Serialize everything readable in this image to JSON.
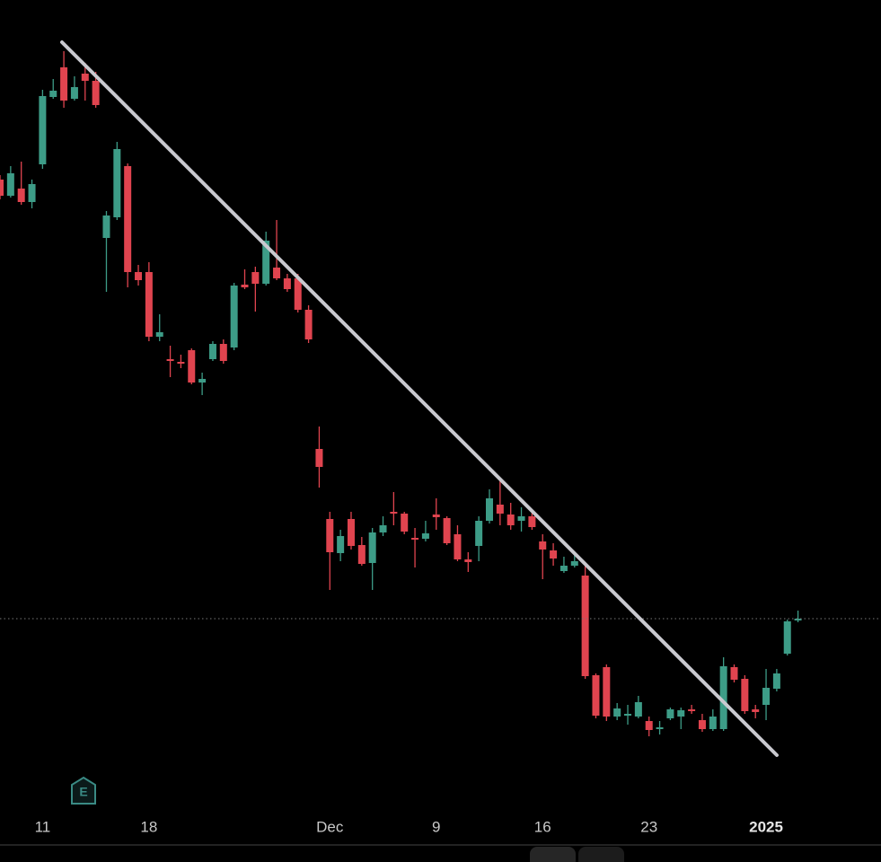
{
  "chart_data": {
    "type": "candlestick",
    "x": [
      0,
      1,
      2,
      3,
      4,
      5,
      6,
      7,
      8,
      9,
      10,
      11,
      12,
      13,
      14,
      15,
      16,
      17,
      18,
      19,
      20,
      21,
      22,
      23,
      24,
      25,
      26,
      27,
      28,
      29,
      30,
      31,
      32,
      33,
      34,
      35,
      36,
      37,
      38,
      39,
      40,
      41,
      42,
      43,
      44,
      45,
      46,
      47,
      48,
      49,
      50,
      51,
      52,
      53,
      54,
      55,
      56,
      57,
      58,
      59,
      60,
      61,
      62,
      63,
      64,
      65,
      66,
      67,
      68,
      69,
      70,
      71,
      72,
      73,
      74,
      75
    ],
    "open": [
      700,
      682,
      690,
      675,
      717,
      792,
      825,
      790,
      818,
      810,
      635,
      658,
      715,
      597,
      597,
      525,
      500,
      497,
      510,
      474,
      500,
      517,
      513,
      583,
      597,
      584,
      602,
      590,
      590,
      555,
      400,
      322,
      284,
      322,
      293,
      273,
      307,
      330,
      328,
      301,
      300,
      327,
      323,
      305,
      277,
      292,
      320,
      338,
      327,
      320,
      325,
      297,
      287,
      264,
      270,
      259,
      148,
      157,
      102,
      103,
      102,
      97,
      88,
      100,
      102,
      110,
      98,
      88,
      88,
      157,
      144,
      110,
      115,
      133,
      172,
      209
    ],
    "high": [
      705,
      715,
      720,
      700,
      800,
      812,
      843,
      815,
      830,
      820,
      665,
      742,
      718,
      605,
      608,
      550,
      515,
      505,
      512,
      485,
      520,
      522,
      585,
      600,
      603,
      642,
      655,
      595,
      595,
      560,
      425,
      330,
      310,
      330,
      302,
      312,
      325,
      352,
      330,
      312,
      320,
      345,
      325,
      315,
      285,
      325,
      355,
      365,
      340,
      335,
      330,
      305,
      295,
      280,
      285,
      270,
      150,
      160,
      117,
      115,
      125,
      102,
      97,
      112,
      112,
      115,
      105,
      110,
      168,
      160,
      148,
      115,
      155,
      155,
      210,
      220
    ],
    "low": [
      678,
      680,
      672,
      668,
      712,
      790,
      780,
      788,
      788,
      780,
      575,
      655,
      580,
      582,
      520,
      520,
      480,
      490,
      472,
      460,
      498,
      495,
      510,
      578,
      553,
      582,
      588,
      575,
      552,
      518,
      357,
      243,
      275,
      288,
      270,
      243,
      303,
      315,
      305,
      268,
      297,
      310,
      293,
      275,
      263,
      275,
      317,
      315,
      310,
      308,
      310,
      255,
      270,
      262,
      268,
      144,
      100,
      97,
      98,
      93,
      100,
      80,
      82,
      98,
      88,
      105,
      85,
      86,
      86,
      140,
      105,
      100,
      98,
      130,
      170,
      207
    ],
    "close": [
      682,
      707,
      675,
      695,
      793,
      799,
      788,
      803,
      810,
      783,
      660,
      734,
      597,
      588,
      525,
      530,
      498,
      495,
      474,
      478,
      517,
      498,
      582,
      580,
      584,
      632,
      590,
      578,
      555,
      522,
      380,
      285,
      303,
      292,
      272,
      307,
      315,
      328,
      308,
      299,
      306,
      324,
      295,
      277,
      274,
      320,
      345,
      328,
      315,
      325,
      313,
      288,
      278,
      270,
      275,
      147,
      103,
      102,
      111,
      105,
      118,
      87,
      90,
      110,
      109,
      108,
      88,
      102,
      158,
      143,
      108,
      107,
      134,
      150,
      208,
      211
    ],
    "up_color": "#3d9c87",
    "down_color": "#e0444f",
    "xlim": [
      0,
      82.8
    ],
    "ylim": [
      0,
      900
    ],
    "xticks": [
      {
        "value": 4,
        "label": "11"
      },
      {
        "value": 14,
        "label": "18"
      },
      {
        "value": 31,
        "label": "Dec"
      },
      {
        "value": 41,
        "label": "9"
      },
      {
        "value": 51,
        "label": "16"
      },
      {
        "value": 61,
        "label": "23"
      },
      {
        "value": 72,
        "label": "2025",
        "bold": true
      }
    ],
    "last_price_line": true
  }
}
